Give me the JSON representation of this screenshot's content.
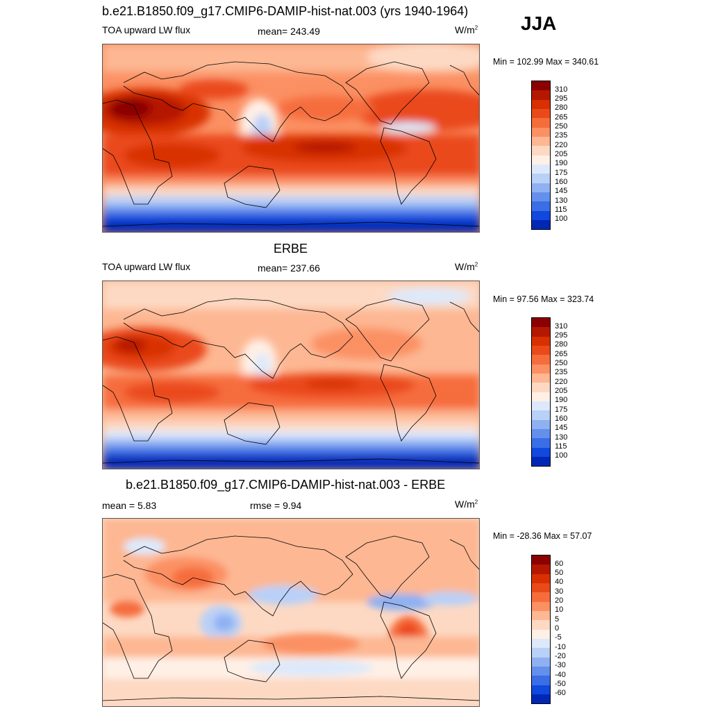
{
  "season": "JJA",
  "units_base": "W/m",
  "units_exp": "2",
  "panels": [
    {
      "id": "model",
      "title": "b.e21.B1850.f09_g17.CMIP6-DAMIP-hist-nat.003 (yrs 1940-1964)",
      "left_label": "TOA upward LW flux",
      "center_label": "mean= 243.49",
      "minmax": "Min = 102.99 Max = 340.61",
      "colorbar": {
        "levels": [
          "310",
          "295",
          "280",
          "265",
          "250",
          "235",
          "220",
          "205",
          "190",
          "175",
          "160",
          "145",
          "130",
          "115",
          "100"
        ],
        "colors": [
          "#8b0000",
          "#b51800",
          "#d83000",
          "#ea4a1a",
          "#f66d3c",
          "#fb9063",
          "#fdb793",
          "#fdd9c3",
          "#fff0e6",
          "#dde9fb",
          "#b9d0f7",
          "#8fb1f2",
          "#6490ec",
          "#3a6ee6",
          "#1148dd",
          "#0028b4",
          "#000f8c"
        ]
      }
    },
    {
      "id": "obs",
      "title": "ERBE",
      "left_label": "TOA upward LW flux",
      "center_label": "mean= 237.66",
      "minmax": "Min =  97.56 Max = 323.74",
      "colorbar": {
        "levels": [
          "310",
          "295",
          "280",
          "265",
          "250",
          "235",
          "220",
          "205",
          "190",
          "175",
          "160",
          "145",
          "130",
          "115",
          "100"
        ],
        "colors": [
          "#8b0000",
          "#b51800",
          "#d83000",
          "#ea4a1a",
          "#f66d3c",
          "#fb9063",
          "#fdb793",
          "#fdd9c3",
          "#fff0e6",
          "#dde9fb",
          "#b9d0f7",
          "#8fb1f2",
          "#6490ec",
          "#3a6ee6",
          "#1148dd",
          "#0028b4",
          "#000f8c"
        ]
      }
    },
    {
      "id": "diff",
      "title": "b.e21.B1850.f09_g17.CMIP6-DAMIP-hist-nat.003 - ERBE",
      "left_label": "mean =   5.83",
      "center_label": "rmse =   9.94",
      "minmax": "Min = -28.36 Max =  57.07",
      "colorbar": {
        "levels": [
          "60",
          "50",
          "40",
          "30",
          "20",
          "10",
          "5",
          "0",
          "-5",
          "-10",
          "-20",
          "-30",
          "-40",
          "-50",
          "-60"
        ],
        "colors": [
          "#8b0000",
          "#b51800",
          "#d83000",
          "#ea4a1a",
          "#f66d3c",
          "#fb9063",
          "#fdb793",
          "#fdd9c3",
          "#fff0e6",
          "#dde9fb",
          "#b9d0f7",
          "#8fb1f2",
          "#6490ec",
          "#3a6ee6",
          "#1148dd",
          "#0028b4",
          "#000f8c"
        ]
      }
    }
  ]
}
